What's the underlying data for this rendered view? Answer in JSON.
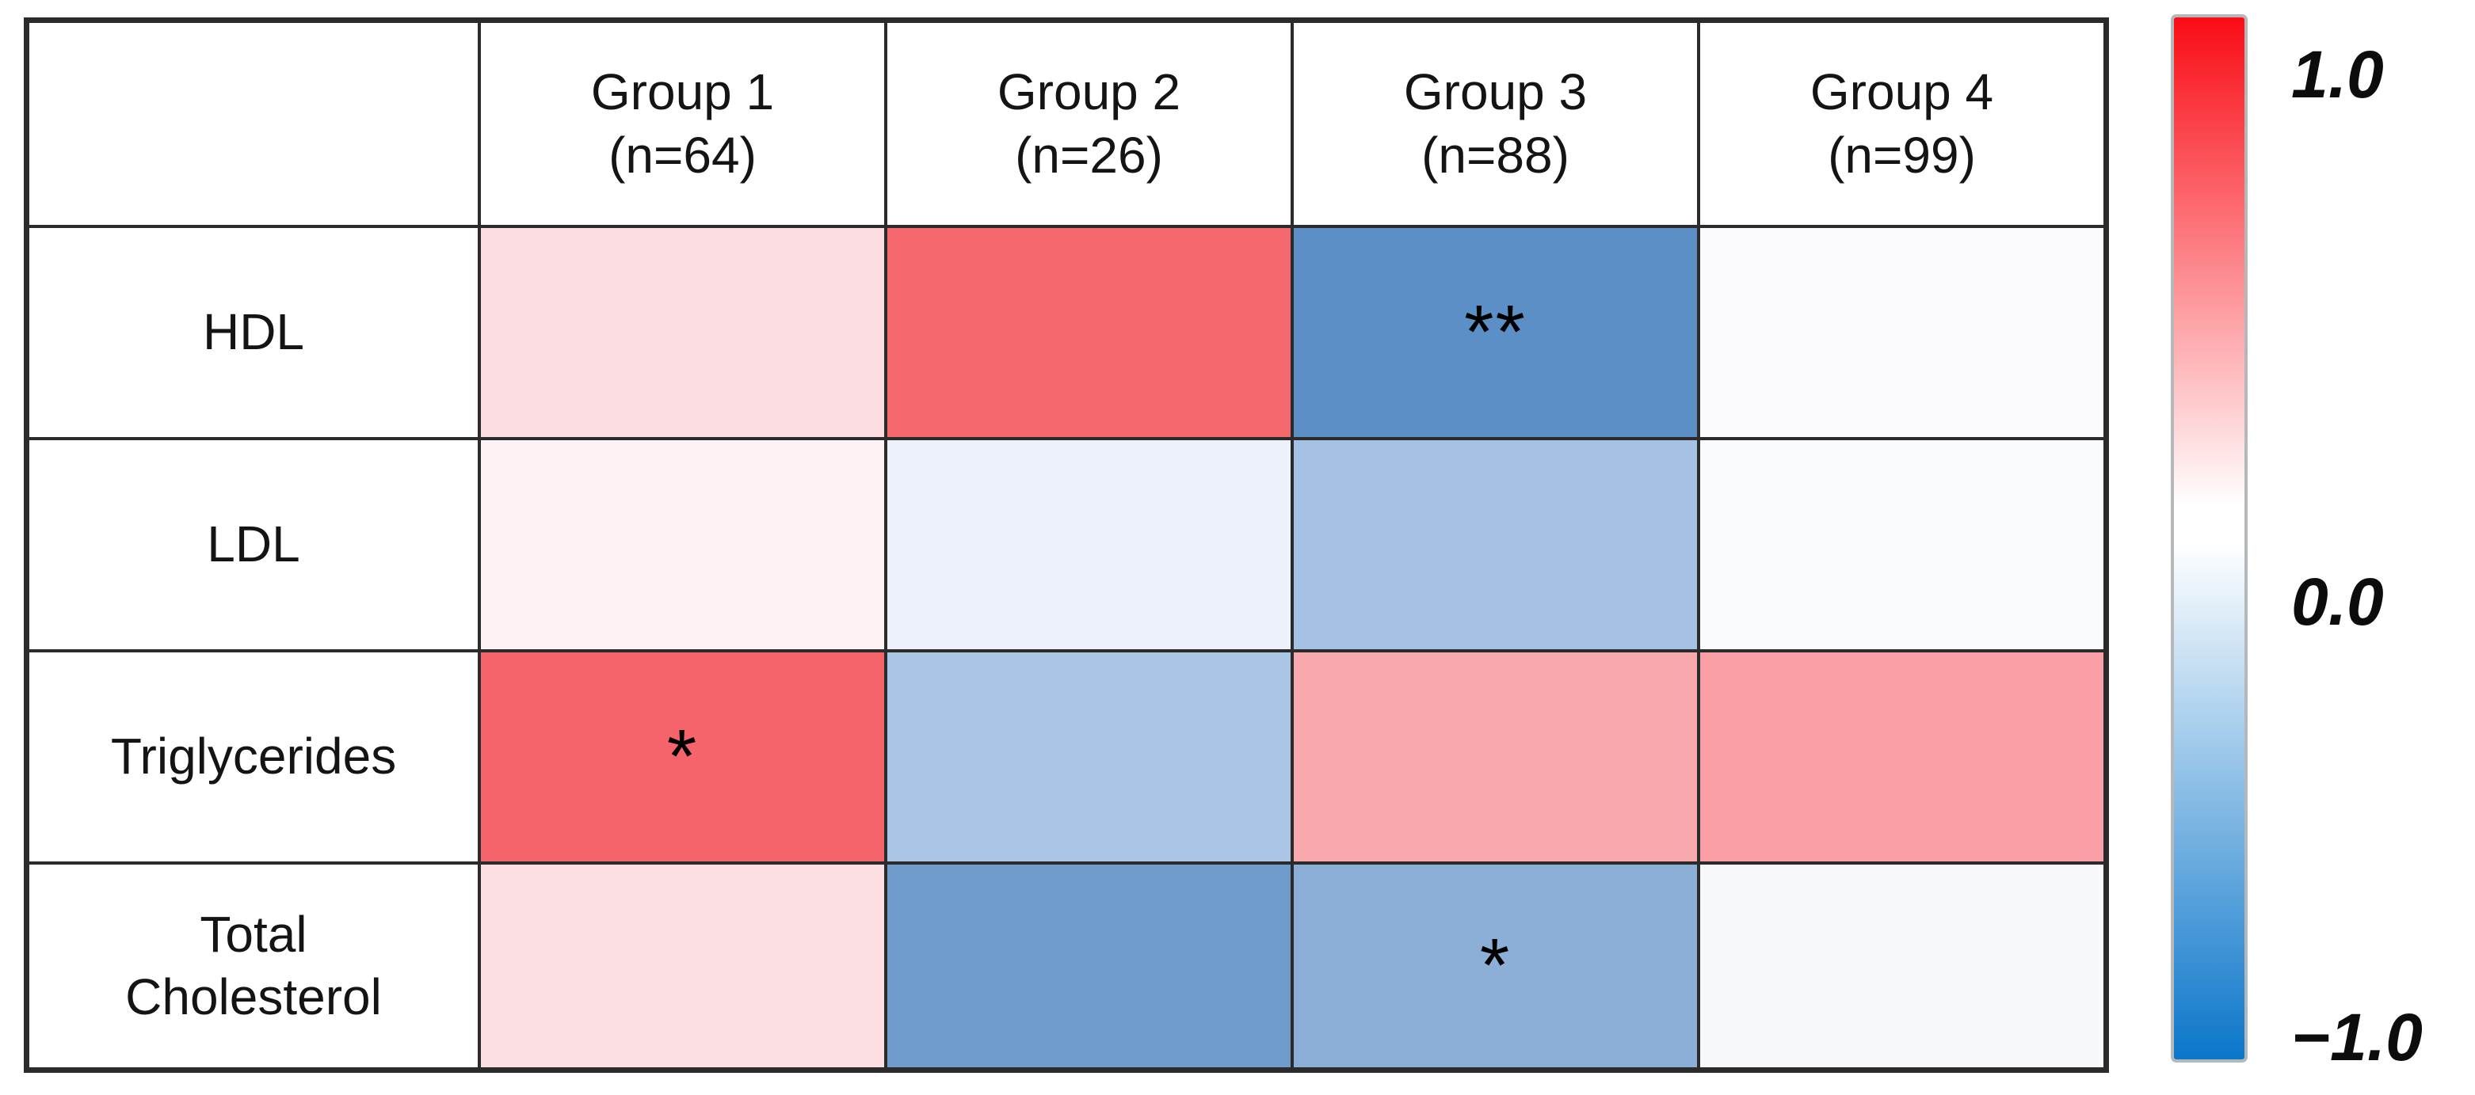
{
  "chart_data": {
    "type": "heatmap",
    "title": "",
    "description": "Correlation heatmap of lipid measures across four groups, colored from -1.0 (blue) to 1.0 (red); asterisks mark statistical significance",
    "columns": [
      {
        "label": "Group 1",
        "n_label": "(n=64)"
      },
      {
        "label": "Group 2",
        "n_label": "(n=26)"
      },
      {
        "label": "Group 3",
        "n_label": "(n=88)"
      },
      {
        "label": "Group 4",
        "n_label": "(n=99)"
      }
    ],
    "rows": [
      {
        "label": "HDL",
        "values_est": [
          0.13,
          0.62,
          -0.6,
          0.01
        ],
        "colors": [
          "#fbdce1",
          "#f5686e",
          "#5c8fc5",
          "#fbfbfe"
        ],
        "significance": [
          "",
          "",
          "**",
          ""
        ]
      },
      {
        "label": "LDL",
        "values_est": [
          0.04,
          -0.06,
          -0.35,
          -0.02
        ],
        "colors": [
          "#fdf3f5",
          "#edf2fa",
          "#a5c1e3",
          "#fafbfe"
        ],
        "significance": [
          "",
          "",
          "",
          ""
        ]
      },
      {
        "label": "Triglycerides",
        "values_est": [
          0.64,
          -0.32,
          0.34,
          0.38
        ],
        "colors": [
          "#f5636b",
          "#abc6e5",
          "#f9a9ae",
          "#f99fa5"
        ],
        "significance": [
          "*",
          "",
          "",
          ""
        ]
      },
      {
        "label": "Total\nCholesterol",
        "values_est": [
          0.12,
          -0.55,
          -0.45,
          -0.03
        ],
        "colors": [
          "#fbdfe3",
          "#6f9cca",
          "#8cafd7",
          "#f6f8fc"
        ],
        "significance": [
          "",
          "",
          "*",
          ""
        ]
      }
    ],
    "value_scale": {
      "min": -1.0,
      "max": 1.0
    },
    "legend": {
      "position": "right",
      "ticks": [
        "1.0",
        "0.0",
        "−1.0"
      ],
      "gradient_top": "#fa0c15",
      "gradient_mid": "#ffffff",
      "gradient_bottom": "#0b76ca"
    },
    "grid": true,
    "grid_color": "#2b2b2b"
  }
}
